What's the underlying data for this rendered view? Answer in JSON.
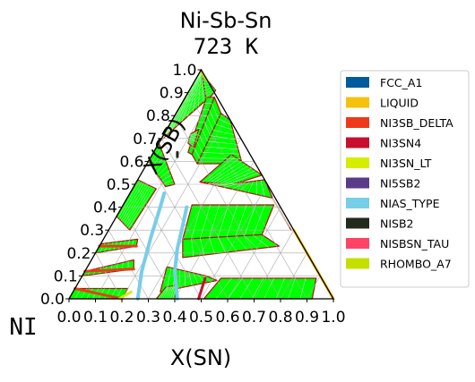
{
  "chart_data": {
    "type": "ternary_phase_diagram",
    "title": "Ni-Sb-Sn",
    "subtitle": "723  K",
    "corner_label": "NI",
    "bottom_axis_label": "X(SN)",
    "left_axis_label": "X(SB)",
    "ticks": [
      "0.0",
      "0.1",
      "0.2",
      "0.3",
      "0.4",
      "0.5",
      "0.6",
      "0.7",
      "0.8",
      "0.9",
      "1.0"
    ],
    "legend_position": "right",
    "legend": [
      {
        "name": "FCC_A1",
        "color": "#005a9c"
      },
      {
        "name": "LIQUID",
        "color": "#f4c20d"
      },
      {
        "name": "NI3SB_DELTA",
        "color": "#ee3a1b"
      },
      {
        "name": "NI3SN4",
        "color": "#c8102e"
      },
      {
        "name": "NI3SN_LT",
        "color": "#d4ee00"
      },
      {
        "name": "NI5SB2",
        "color": "#5a3b8a"
      },
      {
        "name": "NIAS_TYPE",
        "color": "#78cde8"
      },
      {
        "name": "NISB2",
        "color": "#222a1d"
      },
      {
        "name": "NISBSN_TAU",
        "color": "#ff4466"
      },
      {
        "name": "RHOMBO_A7",
        "color": "#c5e000"
      }
    ],
    "fill_color": "#00ff00",
    "boundary_color": "#b01010",
    "regions": [
      {
        "phase": "two_phase",
        "verts": [
          [
            0.0,
            0.0
          ],
          [
            0.2,
            0.0
          ],
          [
            0.2,
            0.045
          ],
          [
            0.0,
            0.045
          ]
        ]
      },
      {
        "phase": "two_phase",
        "verts": [
          [
            0.0,
            0.1
          ],
          [
            0.18,
            0.13
          ],
          [
            0.16,
            0.17
          ],
          [
            0.0,
            0.12
          ]
        ]
      },
      {
        "phase": "two_phase",
        "verts": [
          [
            0.0,
            0.2
          ],
          [
            0.14,
            0.23
          ],
          [
            0.13,
            0.26
          ],
          [
            0.0,
            0.24
          ]
        ]
      },
      {
        "phase": "two_phase",
        "verts": [
          [
            0.0,
            0.52
          ],
          [
            0.09,
            0.48
          ],
          [
            0.08,
            0.3
          ],
          [
            0.0,
            0.36
          ]
        ]
      },
      {
        "phase": "two_phase",
        "verts": [
          [
            0.0,
            0.68
          ],
          [
            0.15,
            0.5
          ],
          [
            0.12,
            0.49
          ],
          [
            0.0,
            0.6
          ]
        ]
      },
      {
        "phase": "two_phase",
        "verts": [
          [
            0.0,
            0.69
          ],
          [
            0.09,
            0.88
          ],
          [
            0.0,
            1.0
          ]
        ]
      },
      {
        "phase": "two_phase",
        "verts": [
          [
            0.09,
            0.88
          ],
          [
            0.0,
            1.0
          ],
          [
            0.0,
            0.69
          ]
        ]
      },
      {
        "phase": "two_phase",
        "verts": [
          [
            0.0,
            1.0
          ],
          [
            0.09,
            0.86
          ],
          [
            0.1,
            0.91
          ],
          [
            0.04,
            0.96
          ]
        ]
      },
      {
        "phase": "two_phase",
        "verts": [
          [
            0.08,
            0.88
          ],
          [
            0.13,
            0.64
          ],
          [
            0.15,
            0.63
          ],
          [
            0.11,
            0.88
          ]
        ]
      },
      {
        "phase": "two_phase",
        "verts": [
          [
            0.11,
            0.88
          ],
          [
            0.15,
            0.63
          ],
          [
            0.19,
            0.59
          ],
          [
            0.17,
            0.81
          ]
        ]
      },
      {
        "phase": "two_phase",
        "verts": [
          [
            0.17,
            0.81
          ],
          [
            0.19,
            0.59
          ],
          [
            0.36,
            0.59
          ],
          [
            0.22,
            0.78
          ]
        ]
      },
      {
        "phase": "two_phase",
        "verts": [
          [
            0.24,
            0.51
          ],
          [
            0.35,
            0.49
          ],
          [
            0.46,
            0.54
          ],
          [
            0.3,
            0.63
          ]
        ]
      },
      {
        "phase": "two_phase",
        "verts": [
          [
            0.24,
            0.51
          ],
          [
            0.55,
            0.44
          ],
          [
            0.48,
            0.52
          ],
          [
            0.36,
            0.5
          ]
        ]
      },
      {
        "phase": "two_phase",
        "verts": [
          [
            0.26,
            0.41
          ],
          [
            0.57,
            0.41
          ],
          [
            0.59,
            0.28
          ],
          [
            0.3,
            0.26
          ]
        ]
      },
      {
        "phase": "two_phase",
        "verts": [
          [
            0.3,
            0.26
          ],
          [
            0.59,
            0.28
          ],
          [
            0.68,
            0.23
          ],
          [
            0.34,
            0.18
          ]
        ]
      },
      {
        "phase": "two_phase",
        "verts": [
          [
            0.3,
            0.14
          ],
          [
            0.47,
            0.1
          ],
          [
            0.52,
            0.08
          ],
          [
            0.33,
            0.03
          ]
        ]
      },
      {
        "phase": "two_phase",
        "verts": [
          [
            0.33,
            0.0
          ],
          [
            0.4,
            0.0
          ],
          [
            0.38,
            0.06
          ],
          [
            0.34,
            0.05
          ]
        ]
      },
      {
        "phase": "two_phase",
        "verts": [
          [
            0.51,
            0.0
          ],
          [
            0.92,
            0.0
          ],
          [
            0.89,
            0.09
          ],
          [
            0.53,
            0.09
          ]
        ]
      },
      {
        "phase": "two_phase",
        "verts": [
          [
            0.58,
            0.41
          ],
          [
            0.69,
            0.3
          ],
          [
            0.55,
            0.44
          ]
        ]
      },
      {
        "phase": "two_phase",
        "verts": [
          [
            0.1,
            0.72
          ],
          [
            0.11,
            0.68
          ],
          [
            0.14,
            0.66
          ],
          [
            0.12,
            0.74
          ]
        ]
      }
    ],
    "phase_lines": [
      {
        "phase": "NIAS_TYPE",
        "points": [
          [
            0.26,
            0.0
          ],
          [
            0.215,
            0.12
          ],
          [
            0.175,
            0.27
          ],
          [
            0.145,
            0.4
          ],
          [
            0.13,
            0.46
          ]
        ]
      },
      {
        "phase": "NIAS_TYPE",
        "points": [
          [
            0.41,
            0.0
          ],
          [
            0.34,
            0.12
          ],
          [
            0.3,
            0.22
          ],
          [
            0.27,
            0.32
          ],
          [
            0.245,
            0.4
          ]
        ]
      },
      {
        "phase": "LIQUID",
        "points": [
          [
            0.7,
            0.3
          ],
          [
            0.8,
            0.2
          ],
          [
            0.9,
            0.1
          ],
          [
            1.0,
            0.0
          ]
        ]
      },
      {
        "phase": "NI3SN4",
        "points": [
          [
            0.47,
            0.09
          ],
          [
            0.49,
            0.0
          ]
        ]
      },
      {
        "phase": "NI3SB_DELTA",
        "points": [
          [
            0.0,
            0.045
          ],
          [
            0.2,
            0.0
          ]
        ]
      },
      {
        "phase": "NI3SB_DELTA",
        "points": [
          [
            0.0,
            0.12
          ],
          [
            0.18,
            0.13
          ]
        ]
      },
      {
        "phase": "NI3SB_DELTA",
        "points": [
          [
            0.0,
            0.23
          ],
          [
            0.14,
            0.23
          ]
        ]
      },
      {
        "phase": "NI3SN_LT",
        "points": [
          [
            0.19,
            0.0
          ],
          [
            0.22,
            0.03
          ]
        ]
      },
      {
        "phase": "NISB2",
        "points": [
          [
            0.09,
            0.64
          ],
          [
            0.1,
            0.62
          ]
        ]
      },
      {
        "phase": "RHOMBO_A7",
        "points": [
          [
            0.0,
            0.995
          ],
          [
            0.05,
            0.95
          ]
        ]
      }
    ]
  }
}
